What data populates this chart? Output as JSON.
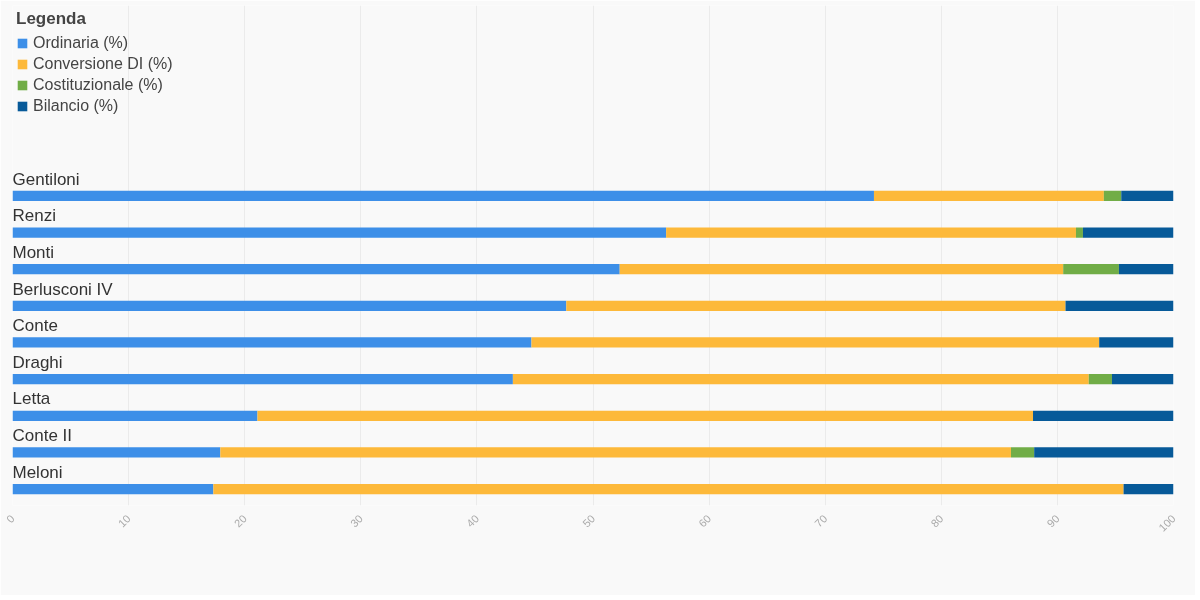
{
  "chart_data": {
    "type": "bar",
    "orientation": "horizontal",
    "stacked": true,
    "legend_title": "Legenda",
    "legend": "top left",
    "grid": "x",
    "categories": [
      "Gentiloni",
      "Renzi",
      "Monti",
      "Berlusconi IV",
      "Conte",
      "Draghi",
      "Letta",
      "Conte II",
      "Meloni"
    ],
    "series": [
      {
        "name": "Ordinaria (%)",
        "color": "#3d8fe8",
        "values": [
          74.2,
          56.3,
          52.3,
          47.7,
          44.7,
          43.1,
          21.1,
          17.9,
          17.3
        ]
      },
      {
        "name": "Conversione DI (%)",
        "color": "#fdb93a",
        "values": [
          19.8,
          35.3,
          38.2,
          43.0,
          48.9,
          49.6,
          66.8,
          68.1,
          78.4
        ]
      },
      {
        "name": "Costituzionale (%)",
        "color": "#71ad47",
        "values": [
          1.5,
          0.6,
          4.8,
          0,
          0,
          2.0,
          0,
          2.0,
          0
        ]
      },
      {
        "name": "Bilancio (%)",
        "color": "#075a99",
        "values": [
          4.5,
          7.8,
          4.7,
          9.3,
          6.4,
          5.3,
          12.1,
          12.0,
          4.3
        ]
      }
    ],
    "xlim": [
      0,
      100
    ],
    "xticks": [
      0,
      10,
      20,
      30,
      40,
      50,
      60,
      70,
      80,
      90,
      100
    ]
  }
}
